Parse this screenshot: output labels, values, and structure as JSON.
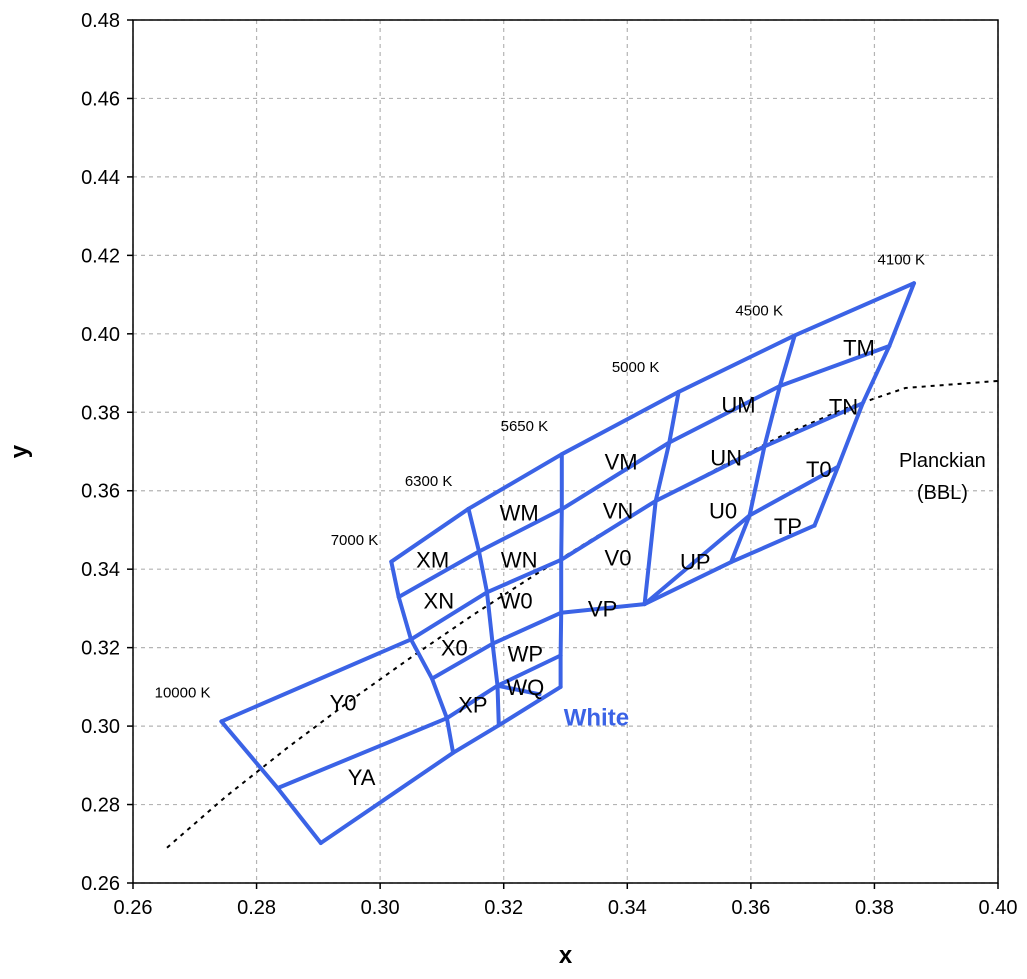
{
  "colors": {
    "bins": "#3b63e6",
    "grid": "#b4b4b4",
    "locus": "#000000",
    "white_label": "#3b63e6"
  },
  "chart_data": {
    "type": "scatter",
    "xlabel": "x",
    "ylabel": "y",
    "xlim": [
      0.26,
      0.4
    ],
    "ylim": [
      0.26,
      0.48
    ],
    "grid": true,
    "x_ticks": [
      "0.26",
      "0.28",
      "0.30",
      "0.32",
      "0.34",
      "0.36",
      "0.38",
      "0.40"
    ],
    "y_ticks": [
      "0.26",
      "0.28",
      "0.30",
      "0.32",
      "0.34",
      "0.36",
      "0.38",
      "0.40",
      "0.42",
      "0.44",
      "0.46",
      "0.48"
    ],
    "region_label": "White",
    "planckian_label": "Planckian",
    "planckian_label2": "(BBL)",
    "planckian_locus": {
      "x": [
        0.2655,
        0.275,
        0.285,
        0.295,
        0.305,
        0.315,
        0.325,
        0.335,
        0.345,
        0.355,
        0.365,
        0.375,
        0.385,
        0.4
      ],
      "y": [
        0.269,
        0.282,
        0.2945,
        0.3063,
        0.3175,
        0.3283,
        0.3385,
        0.3483,
        0.3575,
        0.366,
        0.374,
        0.3808,
        0.3862,
        0.388
      ]
    },
    "cct_lines": [
      {
        "label": "10000 K",
        "x": [
          0.2743,
          0.2834,
          0.2904
        ],
        "y": [
          0.3012,
          0.2842,
          0.2702
        ]
      },
      {
        "label": "7000 K",
        "x": [
          0.3018,
          0.303,
          0.305,
          0.3084,
          0.3108,
          0.3118
        ],
        "y": [
          0.3419,
          0.3329,
          0.3221,
          0.3121,
          0.302,
          0.2932
        ]
      },
      {
        "label": "6300 K",
        "x": [
          0.3143,
          0.316,
          0.3173,
          0.3182,
          0.319,
          0.3192
        ],
        "y": [
          0.3554,
          0.3445,
          0.3341,
          0.321,
          0.3103,
          0.3002
        ]
      },
      {
        "label": "5650 K",
        "x": [
          0.3294,
          0.3294,
          0.3293,
          0.3293,
          0.3292,
          0.3292
        ],
        "y": [
          0.3693,
          0.3553,
          0.3424,
          0.3289,
          0.318,
          0.31
        ]
      },
      {
        "label": "5000 K",
        "x": [
          0.3483,
          0.3468,
          0.3446,
          0.3428
        ],
        "y": [
          0.3852,
          0.3723,
          0.3574,
          0.3311
        ]
      },
      {
        "label": "4500 K",
        "x": [
          0.3671,
          0.3647,
          0.3622,
          0.3598,
          0.3568
        ],
        "y": [
          0.3996,
          0.3867,
          0.3713,
          0.3537,
          0.3418
        ]
      },
      {
        "label": "4100 K",
        "x": [
          0.3864,
          0.3824,
          0.3781,
          0.3741,
          0.3703
        ],
        "y": [
          0.4129,
          0.3969,
          0.3823,
          0.3661,
          0.3511
        ]
      }
    ],
    "band_lines": [
      {
        "x": [
          0.3018,
          0.3143,
          0.3294,
          0.3483,
          0.3671,
          0.3864
        ],
        "y": [
          0.3419,
          0.3554,
          0.3693,
          0.3852,
          0.3996,
          0.4129
        ]
      },
      {
        "x": [
          0.303,
          0.316,
          0.3294,
          0.3468,
          0.3647,
          0.3824
        ],
        "y": [
          0.3329,
          0.3445,
          0.3553,
          0.3723,
          0.3867,
          0.3969
        ]
      },
      {
        "x": [
          0.2743,
          0.305,
          0.3173,
          0.3293,
          0.3446,
          0.3622,
          0.3781
        ],
        "y": [
          0.3012,
          0.3221,
          0.3341,
          0.3424,
          0.3574,
          0.3713,
          0.3823
        ]
      },
      {
        "x": [
          0.3084,
          0.3182,
          0.3293,
          0.3428,
          0.3598,
          0.3741
        ],
        "y": [
          0.3121,
          0.321,
          0.3289,
          0.3311,
          0.3537,
          0.3661
        ]
      },
      {
        "x": [
          0.2834,
          0.3108,
          0.319,
          0.3292
        ],
        "y": [
          0.2842,
          0.302,
          0.3103,
          0.318
        ]
      },
      {
        "x": [
          0.319,
          0.3258
        ],
        "y": [
          0.3103,
          0.3081
        ]
      },
      {
        "x": [
          0.2904,
          0.3118,
          0.3192,
          0.3292
        ],
        "y": [
          0.2702,
          0.2932,
          0.3002,
          0.31
        ]
      },
      {
        "x": [
          0.3428,
          0.3568,
          0.3703
        ],
        "y": [
          0.3311,
          0.3418,
          0.3511
        ]
      }
    ],
    "bin_labels": [
      {
        "text": "TM",
        "x": 0.3775,
        "y": 0.3965
      },
      {
        "text": "UM",
        "x": 0.358,
        "y": 0.382
      },
      {
        "text": "TN",
        "x": 0.375,
        "y": 0.3815
      },
      {
        "text": "VM",
        "x": 0.339,
        "y": 0.3675
      },
      {
        "text": "UN",
        "x": 0.356,
        "y": 0.3685
      },
      {
        "text": "T0",
        "x": 0.371,
        "y": 0.3655
      },
      {
        "text": "WM",
        "x": 0.3225,
        "y": 0.3545
      },
      {
        "text": "VN",
        "x": 0.3385,
        "y": 0.355
      },
      {
        "text": "U0",
        "x": 0.3555,
        "y": 0.355
      },
      {
        "text": "TP",
        "x": 0.366,
        "y": 0.351
      },
      {
        "text": "XM",
        "x": 0.3085,
        "y": 0.3425
      },
      {
        "text": "WN",
        "x": 0.3225,
        "y": 0.3425
      },
      {
        "text": "V0",
        "x": 0.3385,
        "y": 0.343
      },
      {
        "text": "UP",
        "x": 0.351,
        "y": 0.342
      },
      {
        "text": "XN",
        "x": 0.3095,
        "y": 0.332
      },
      {
        "text": "W0",
        "x": 0.322,
        "y": 0.332
      },
      {
        "text": "VP",
        "x": 0.336,
        "y": 0.33
      },
      {
        "text": "X0",
        "x": 0.312,
        "y": 0.32
      },
      {
        "text": "WP",
        "x": 0.3235,
        "y": 0.3185
      },
      {
        "text": "Y0",
        "x": 0.294,
        "y": 0.306
      },
      {
        "text": "WQ",
        "x": 0.3235,
        "y": 0.31
      },
      {
        "text": "XP",
        "x": 0.315,
        "y": 0.3055
      },
      {
        "text": "YA",
        "x": 0.297,
        "y": 0.287
      }
    ],
    "cct_labels": [
      {
        "text": "10000 K",
        "x": 0.2635,
        "y": 0.3085
      },
      {
        "text": "7000 K",
        "x": 0.292,
        "y": 0.3475
      },
      {
        "text": "6300 K",
        "x": 0.304,
        "y": 0.3625
      },
      {
        "text": "5650 K",
        "x": 0.3195,
        "y": 0.3765
      },
      {
        "text": "5000 K",
        "x": 0.3375,
        "y": 0.3915
      },
      {
        "text": "4500 K",
        "x": 0.3575,
        "y": 0.406
      },
      {
        "text": "4100 K",
        "x": 0.3805,
        "y": 0.419
      }
    ],
    "planckian_pos": {
      "x": 0.391,
      "y": 0.3655
    },
    "white_pos": {
      "x": 0.335,
      "y": 0.3025
    }
  }
}
